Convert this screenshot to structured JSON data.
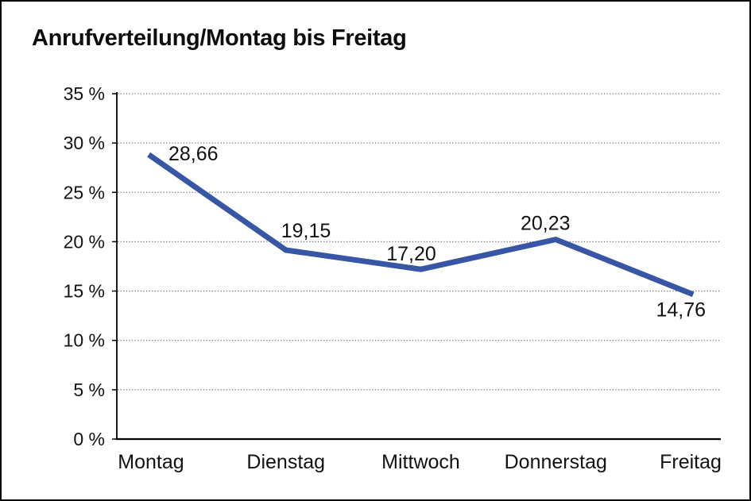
{
  "chart_data": {
    "type": "line",
    "title": "Anrufverteilung/Montag bis Freitag",
    "categories": [
      "Montag",
      "Dienstag",
      "Mittwoch",
      "Donnerstag",
      "Freitag"
    ],
    "series": [
      {
        "name": "Anrufverteilung",
        "values": [
          28.66,
          19.15,
          17.2,
          20.23,
          14.76
        ],
        "point_labels": [
          "28,66",
          "19,15",
          "17,20",
          "20,23",
          "14,76"
        ],
        "color": "#3757a6"
      }
    ],
    "xlabel": "",
    "ylabel": "",
    "y_axis": {
      "min": 0,
      "max": 35,
      "step": 5,
      "tick_labels": [
        "0 %",
        "5 %",
        "10 %",
        "15 %",
        "20 %",
        "25 %",
        "30 %",
        "35 %"
      ]
    },
    "x_axis": {
      "tick_labels": [
        "Montag",
        "Dienstag",
        "Mittwoch",
        "Donnerstag",
        "Freitag"
      ]
    },
    "grid": "horizontal-dotted",
    "legend": "none",
    "colors": {
      "line": "#3757a6",
      "axis": "#000000",
      "gridline": "#6e6e6e",
      "text": "#111111",
      "background": "#ffffff",
      "frame_border": "#000000"
    }
  }
}
